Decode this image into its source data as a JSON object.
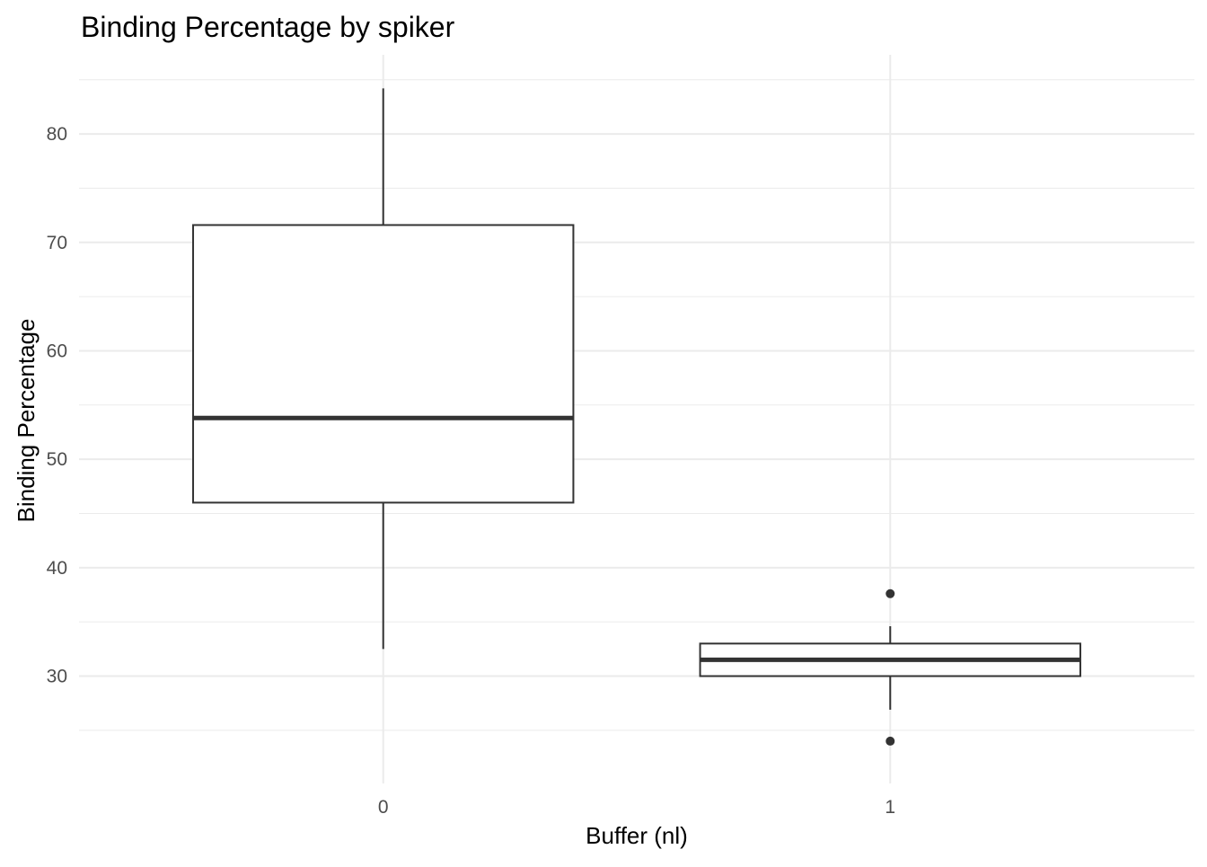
{
  "chart_data": {
    "type": "boxplot",
    "title": "Binding Percentage by spiker",
    "xlabel": "Buffer (nl)",
    "ylabel": "Binding Percentage",
    "categories": [
      "0",
      "1"
    ],
    "boxes": [
      {
        "category": "0",
        "whisker_low": 32.5,
        "q1": 46.0,
        "median": 53.8,
        "q3": 71.6,
        "whisker_high": 84.2,
        "outliers": []
      },
      {
        "category": "1",
        "whisker_low": 26.9,
        "q1": 30.0,
        "median": 31.5,
        "q3": 33.0,
        "whisker_high": 34.6,
        "outliers": [
          37.6,
          24.0
        ]
      }
    ],
    "y_ticks": [
      30,
      40,
      50,
      60,
      70,
      80
    ],
    "ylim": [
      20.1,
      87.3
    ],
    "grid": true,
    "legend": "none",
    "colors": {
      "grid": "#ebebeb",
      "box_stroke": "#333333",
      "median": "#333333",
      "outlier": "#333333",
      "background": "#ffffff"
    }
  }
}
